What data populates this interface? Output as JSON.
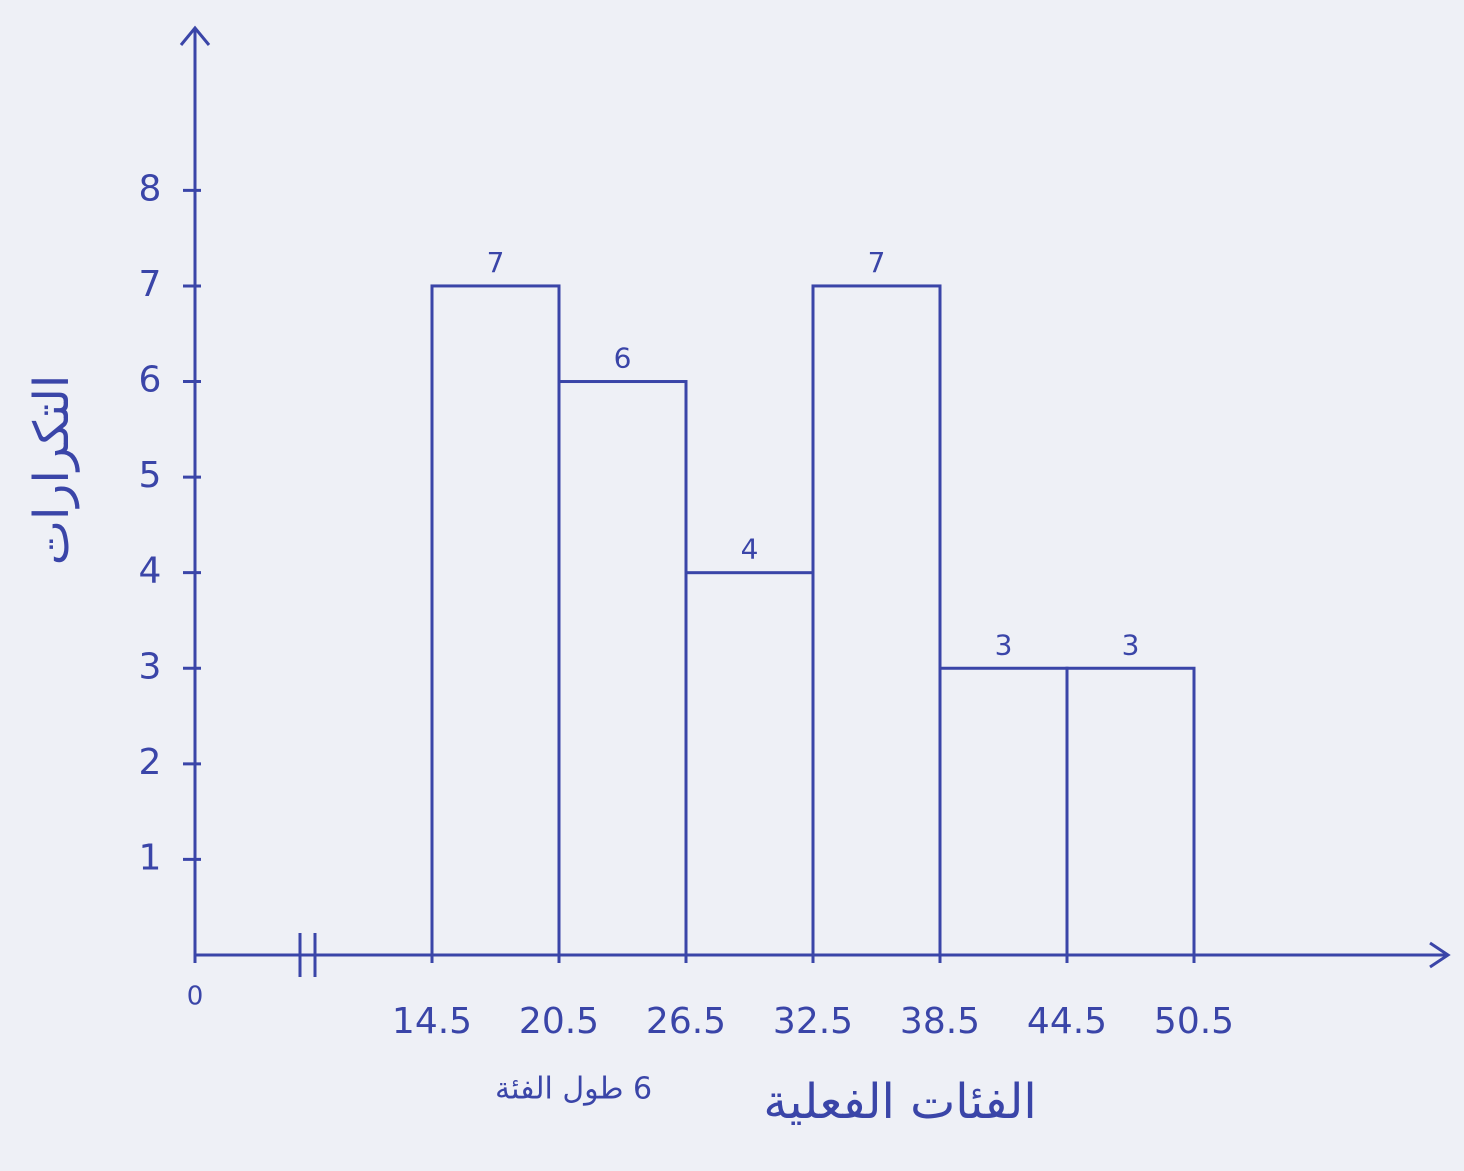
{
  "chart_data": {
    "type": "histogram",
    "x_label": "الفئات الفعلية",
    "y_label": "التكرارات",
    "annotation": "6 طول الفئة",
    "bins": [
      14.5,
      20.5,
      26.5,
      32.5,
      38.5,
      44.5,
      50.5
    ],
    "values": [
      7,
      6,
      4,
      7,
      3,
      3
    ],
    "color": "#3a45a8",
    "xlim": [
      0,
      62.5
    ],
    "axis_break": [
      0,
      14.5
    ],
    "xticks": [
      0,
      14.5,
      20.5,
      26.5,
      32.5,
      38.5,
      44.5,
      50.5
    ],
    "ylim": [
      0,
      9.5
    ],
    "yticks": [
      1,
      2,
      3,
      4,
      5,
      6,
      7,
      8
    ]
  }
}
